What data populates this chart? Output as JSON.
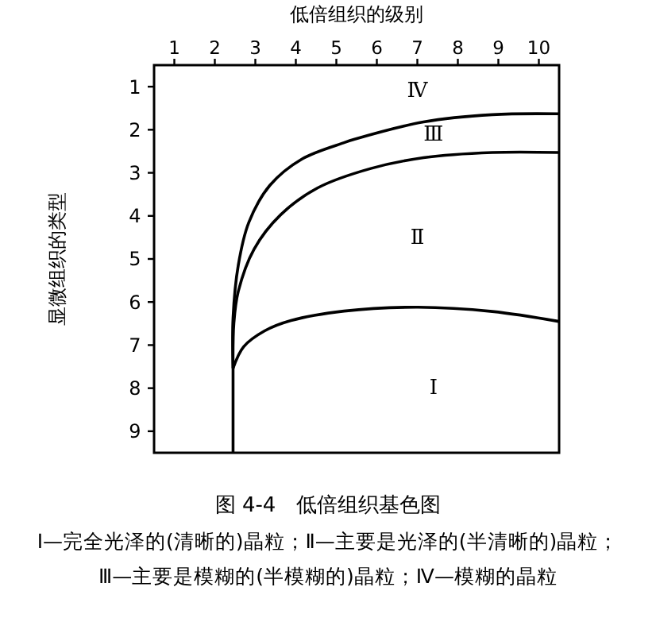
{
  "chart_data": {
    "type": "line",
    "title": "图 4-4　低倍组织基色图",
    "xlabel": "低倍组织的级别",
    "ylabel": "显微组织的类型",
    "xlim": [
      0.5,
      10.5
    ],
    "ylim": [
      9.5,
      0.5
    ],
    "xticks": [
      1,
      2,
      3,
      4,
      5,
      6,
      7,
      8,
      9,
      10
    ],
    "yticks": [
      1,
      2,
      3,
      4,
      5,
      6,
      7,
      8,
      9
    ],
    "grid": false,
    "marker": "none",
    "line_style": "solid",
    "series": [
      {
        "color": "#000000",
        "x": [
          2.45,
          2.45
        ],
        "values": [
          9.5,
          7.54
        ]
      },
      {
        "color": "#000000",
        "x": [
          2.45,
          2.71,
          3.23,
          3.88,
          5.19,
          7.02,
          8.85,
          10.49
        ],
        "values": [
          7.54,
          7.04,
          6.67,
          6.43,
          6.21,
          6.12,
          6.22,
          6.45
        ]
      },
      {
        "color": "#000000",
        "x": [
          2.45,
          2.47,
          2.58,
          2.97,
          3.63,
          4.54,
          5.85,
          7.15,
          8.85,
          10.49
        ],
        "values": [
          7.54,
          6.49,
          5.75,
          4.77,
          3.97,
          3.35,
          2.9,
          2.65,
          2.53,
          2.53
        ]
      },
      {
        "color": "#000000",
        "x": [
          2.45,
          2.45,
          2.58,
          2.84,
          3.36,
          4.15,
          5.19,
          5.45,
          7.15,
          8.85,
          10.49
        ],
        "values": [
          7.54,
          6.37,
          5.14,
          4.15,
          3.29,
          2.68,
          2.3,
          2.22,
          1.82,
          1.65,
          1.63
        ]
      }
    ],
    "annotations": [
      "Ⅳ",
      "Ⅲ",
      "Ⅱ",
      "Ⅰ",
      "Ⅰ—完全光泽的(清晰的)晶粒；Ⅱ—主要是光泽的(半清晰的)晶粒；",
      "Ⅲ—主要是模糊的(半模糊的)晶粒；Ⅳ—模糊的晶粒"
    ]
  }
}
